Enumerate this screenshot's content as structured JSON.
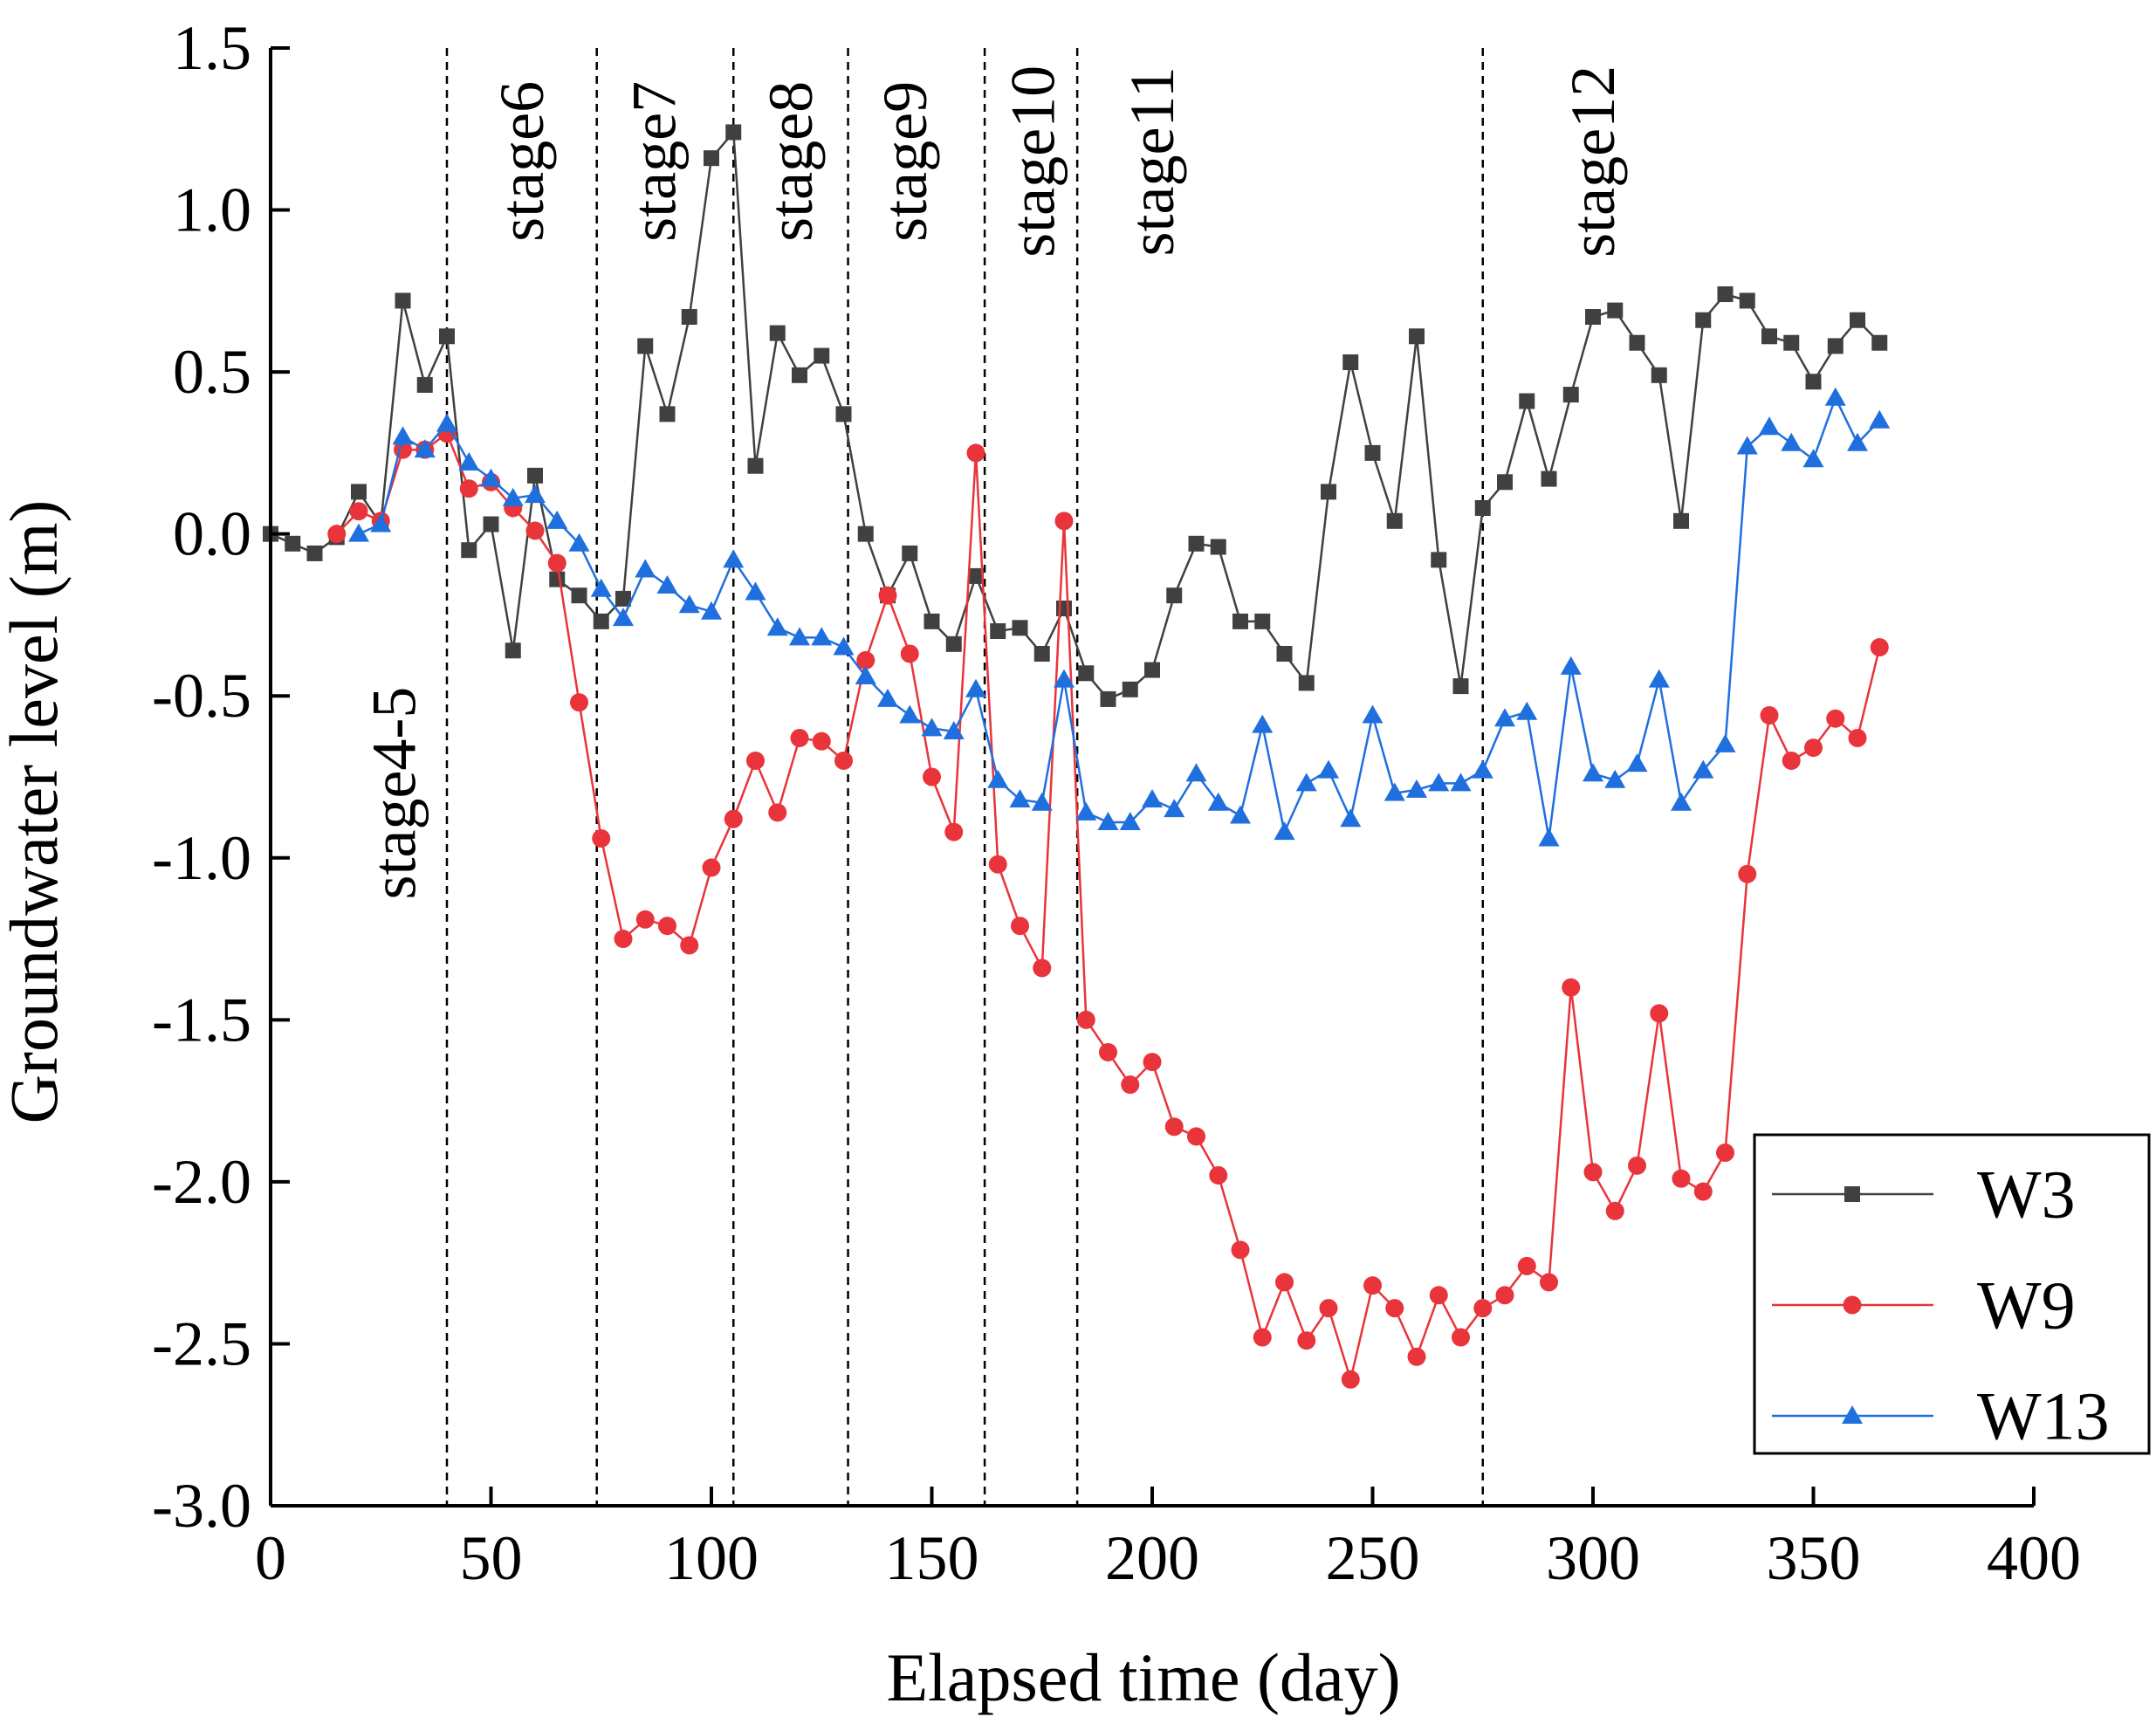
{
  "chart_data": {
    "type": "line",
    "xlabel": "Elapsed time (day)",
    "ylabel": "Groundwater level (m)",
    "xlim": [
      0,
      400
    ],
    "ylim": [
      -3.0,
      1.5
    ],
    "xticks": [
      0,
      50,
      100,
      150,
      200,
      250,
      300,
      350,
      400
    ],
    "xtick_labels": [
      "0",
      "50",
      "100",
      "150",
      "200",
      "250",
      "300",
      "350",
      "400"
    ],
    "yticks": [
      -3.0,
      -2.5,
      -2.0,
      -1.5,
      -1.0,
      -0.5,
      0.0,
      0.5,
      1.0,
      1.5
    ],
    "ytick_labels": [
      "-3.0",
      "-2.5",
      "-2.0",
      "-1.5",
      "-1.0",
      "-0.5",
      "0.0",
      "0.5",
      "1.0",
      "1.5"
    ],
    "grid": false,
    "legend_position": "bottom-right",
    "stage_lines": [
      40,
      74,
      105,
      131,
      162,
      183,
      275
    ],
    "stage_labels": [
      {
        "text": "stage4-5",
        "x": 28,
        "y": -0.8
      },
      {
        "text": "stage6",
        "x": 57,
        "y": 1.15
      },
      {
        "text": "stage7",
        "x": 87,
        "y": 1.15
      },
      {
        "text": "stage8",
        "x": 118,
        "y": 1.15
      },
      {
        "text": "stage9",
        "x": 144,
        "y": 1.15
      },
      {
        "text": "stage10",
        "x": 173,
        "y": 1.15
      },
      {
        "text": "stage11",
        "x": 200,
        "y": 1.15
      },
      {
        "text": "stage12",
        "x": 300,
        "y": 1.15
      }
    ],
    "series": [
      {
        "name": "W3",
        "color": "#404040",
        "marker": "square",
        "x": [
          0,
          5,
          10,
          15,
          20,
          25,
          30,
          35,
          40,
          45,
          50,
          55,
          60,
          65,
          70,
          75,
          80,
          85,
          90,
          95,
          100,
          105,
          110,
          115,
          120,
          125,
          130,
          135,
          140,
          145,
          150,
          155,
          160,
          165,
          170,
          175,
          180,
          185,
          190,
          195,
          200,
          205,
          210,
          215,
          220,
          225,
          230,
          235,
          240,
          245,
          250,
          255,
          260,
          265,
          270,
          275,
          280,
          285,
          290,
          295,
          300,
          305,
          310,
          315,
          320,
          325,
          330,
          335,
          340,
          345,
          350,
          355,
          360,
          365
        ],
        "values": [
          0.0,
          -0.03,
          -0.06,
          -0.01,
          0.13,
          0.03,
          0.72,
          0.46,
          0.61,
          -0.05,
          0.03,
          -0.36,
          0.18,
          -0.14,
          -0.19,
          -0.27,
          -0.2,
          0.58,
          0.37,
          0.67,
          1.16,
          1.24,
          0.21,
          0.62,
          0.49,
          0.55,
          0.37,
          0.0,
          -0.19,
          -0.06,
          -0.27,
          -0.34,
          -0.13,
          -0.3,
          -0.29,
          -0.37,
          -0.23,
          -0.43,
          -0.51,
          -0.48,
          -0.42,
          -0.19,
          -0.03,
          -0.04,
          -0.27,
          -0.27,
          -0.37,
          -0.46,
          0.13,
          0.53,
          0.25,
          0.04,
          0.61,
          -0.08,
          -0.47,
          0.08,
          0.16,
          0.41,
          0.17,
          0.43,
          0.67,
          0.69,
          0.59,
          0.49,
          0.04,
          0.66,
          0.74,
          0.72,
          0.61,
          0.59,
          0.47,
          0.58,
          0.66,
          0.59
        ]
      },
      {
        "name": "W9",
        "color": "#e8343a",
        "marker": "circle",
        "x": [
          15,
          20,
          25,
          30,
          35,
          40,
          45,
          50,
          55,
          60,
          65,
          70,
          75,
          80,
          85,
          90,
          95,
          100,
          105,
          110,
          115,
          120,
          125,
          130,
          135,
          140,
          145,
          150,
          155,
          160,
          165,
          170,
          175,
          180,
          185,
          190,
          195,
          200,
          205,
          210,
          215,
          220,
          225,
          230,
          235,
          240,
          245,
          250,
          255,
          260,
          265,
          270,
          275,
          280,
          285,
          290,
          295,
          300,
          305,
          310,
          315,
          320,
          325,
          330,
          335,
          340,
          345,
          350,
          355,
          360,
          365
        ],
        "values": [
          0.0,
          0.07,
          0.04,
          0.26,
          0.26,
          0.31,
          0.14,
          0.16,
          0.08,
          0.01,
          -0.09,
          -0.52,
          -0.94,
          -1.25,
          -1.19,
          -1.21,
          -1.27,
          -1.03,
          -0.88,
          -0.7,
          -0.86,
          -0.63,
          -0.64,
          -0.7,
          -0.39,
          -0.19,
          -0.37,
          -0.75,
          -0.92,
          0.25,
          -1.02,
          -1.21,
          -1.34,
          0.04,
          -1.5,
          -1.6,
          -1.7,
          -1.63,
          -1.83,
          -1.86,
          -1.98,
          -2.21,
          -2.48,
          -2.31,
          -2.49,
          -2.39,
          -2.61,
          -2.32,
          -2.39,
          -2.54,
          -2.35,
          -2.48,
          -2.39,
          -2.35,
          -2.26,
          -2.31,
          -1.4,
          -1.97,
          -2.09,
          -1.95,
          -1.48,
          -1.99,
          -2.03,
          -1.91,
          -1.05,
          -0.56,
          -0.7,
          -0.66,
          -0.57,
          -0.63,
          -0.35
        ]
      },
      {
        "name": "W13",
        "color": "#1f6fde",
        "marker": "triangle",
        "x": [
          20,
          25,
          30,
          35,
          40,
          45,
          50,
          55,
          60,
          65,
          70,
          75,
          80,
          85,
          90,
          95,
          100,
          105,
          110,
          115,
          120,
          125,
          130,
          135,
          140,
          145,
          150,
          155,
          160,
          165,
          170,
          175,
          180,
          185,
          190,
          195,
          200,
          205,
          210,
          215,
          220,
          225,
          230,
          235,
          240,
          245,
          250,
          255,
          260,
          265,
          270,
          275,
          280,
          285,
          290,
          295,
          300,
          305,
          310,
          315,
          320,
          325,
          330,
          335,
          340,
          345,
          350,
          355,
          360,
          365
        ],
        "values": [
          0.0,
          0.03,
          0.3,
          0.26,
          0.34,
          0.22,
          0.17,
          0.11,
          0.12,
          0.04,
          -0.03,
          -0.17,
          -0.26,
          -0.11,
          -0.16,
          -0.22,
          -0.24,
          -0.08,
          -0.18,
          -0.29,
          -0.32,
          -0.32,
          -0.35,
          -0.44,
          -0.51,
          -0.56,
          -0.6,
          -0.61,
          -0.48,
          -0.76,
          -0.82,
          -0.83,
          -0.45,
          -0.86,
          -0.89,
          -0.89,
          -0.82,
          -0.85,
          -0.74,
          -0.83,
          -0.87,
          -0.59,
          -0.92,
          -0.77,
          -0.73,
          -0.88,
          -0.56,
          -0.8,
          -0.79,
          -0.77,
          -0.77,
          -0.73,
          -0.57,
          -0.55,
          -0.94,
          -0.41,
          -0.74,
          -0.76,
          -0.71,
          -0.45,
          -0.83,
          -0.73,
          -0.65,
          0.27,
          0.33,
          0.28,
          0.23,
          0.42,
          0.28,
          0.35
        ]
      }
    ]
  }
}
